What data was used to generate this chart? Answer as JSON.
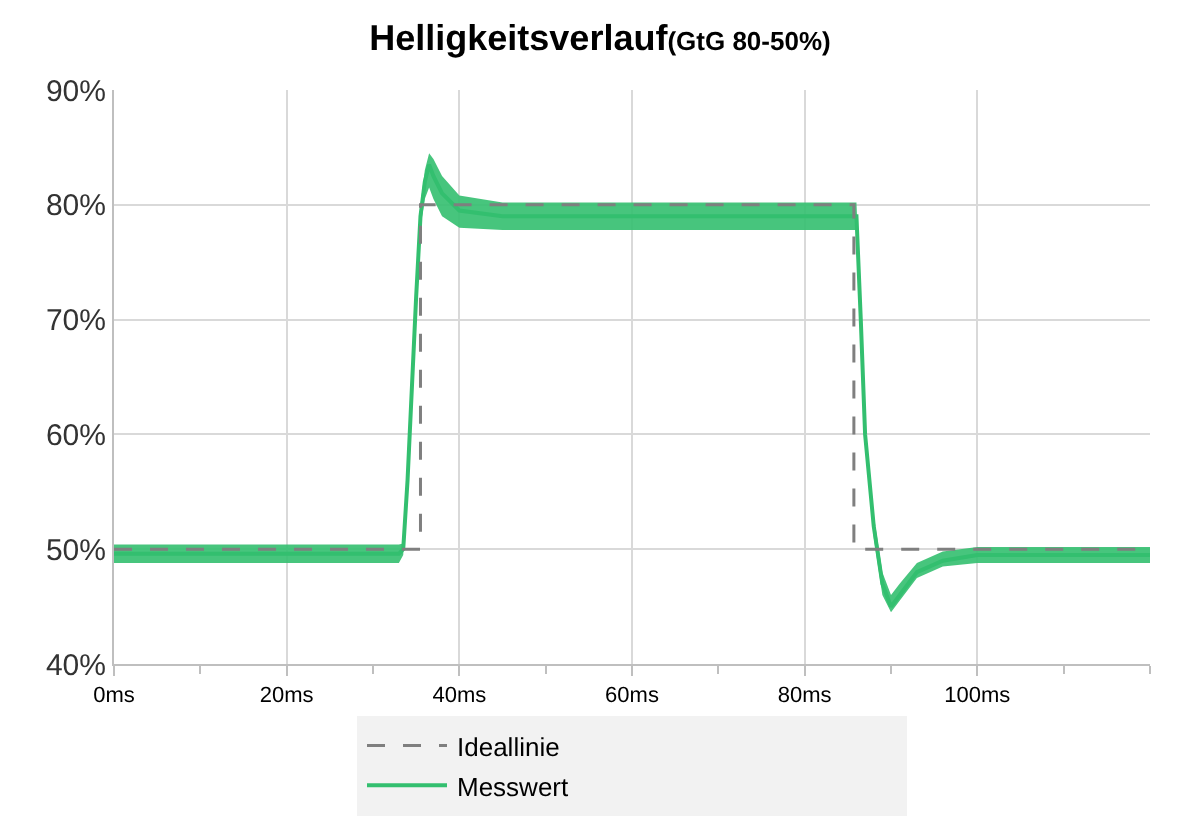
{
  "chart_data": {
    "type": "line",
    "title": "Helligkeitsverlauf",
    "subtitle": "(GtG 80-50%)",
    "xlim": [
      0,
      120
    ],
    "xticks": [
      {
        "value": 0,
        "label": "0ms"
      },
      {
        "value": 20,
        "label": "20ms"
      },
      {
        "value": 40,
        "label": "40ms"
      },
      {
        "value": 60,
        "label": "60ms"
      },
      {
        "value": 80,
        "label": "80ms"
      },
      {
        "value": 100,
        "label": "100ms"
      }
    ],
    "ylim": [
      40,
      90
    ],
    "yticks": [
      {
        "value": 40,
        "label": "40%"
      },
      {
        "value": 50,
        "label": "50%"
      },
      {
        "value": 60,
        "label": "60%"
      },
      {
        "value": 70,
        "label": "70%"
      },
      {
        "value": 80,
        "label": "80%"
      },
      {
        "value": 90,
        "label": "90%"
      }
    ],
    "grid": true,
    "legend": "bottom",
    "series": [
      {
        "name": "Messwert",
        "color": "#33bf6f",
        "line_style": "solid",
        "x": [
          0,
          10,
          20,
          30,
          33,
          33.5,
          34,
          35,
          35.5,
          36,
          36.5,
          37,
          38,
          40,
          45,
          50,
          60,
          70,
          80,
          86,
          86.5,
          87,
          88,
          89,
          90,
          91,
          93,
          96,
          100,
          110,
          120
        ],
        "values": [
          49.6,
          49.6,
          49.6,
          49.6,
          49.6,
          50,
          56,
          72,
          79,
          82,
          83.5,
          82.5,
          81,
          79.5,
          79,
          79,
          79,
          79,
          79,
          79,
          70,
          60,
          52,
          47,
          45,
          46,
          48,
          49,
          49.5,
          49.5,
          49.5
        ],
        "lower": [
          48.8,
          48.8,
          48.8,
          48.8,
          48.8,
          49.5,
          55,
          71,
          78,
          80.5,
          81.5,
          80.5,
          79,
          78,
          77.8,
          77.8,
          77.8,
          77.8,
          77.8,
          77.8,
          69,
          59,
          51,
          46,
          44.5,
          45.5,
          47.5,
          48.5,
          48.8,
          48.8,
          48.8
        ],
        "upper": [
          50.4,
          50.4,
          50.4,
          50.4,
          50.4,
          50.5,
          57,
          73,
          80,
          83,
          84.5,
          84,
          82.5,
          80.8,
          80.2,
          80.2,
          80.2,
          80.2,
          80.2,
          80.2,
          71,
          61,
          53,
          48,
          46,
          47,
          48.8,
          49.8,
          50.2,
          50.2,
          50.2
        ]
      },
      {
        "name": "Ideallinie",
        "color": "#7f7f7f",
        "line_style": "dashed",
        "x": [
          0,
          35.5,
          35.5,
          85.7,
          85.7,
          120
        ],
        "values": [
          50,
          50,
          80,
          80,
          50,
          50
        ]
      }
    ]
  }
}
